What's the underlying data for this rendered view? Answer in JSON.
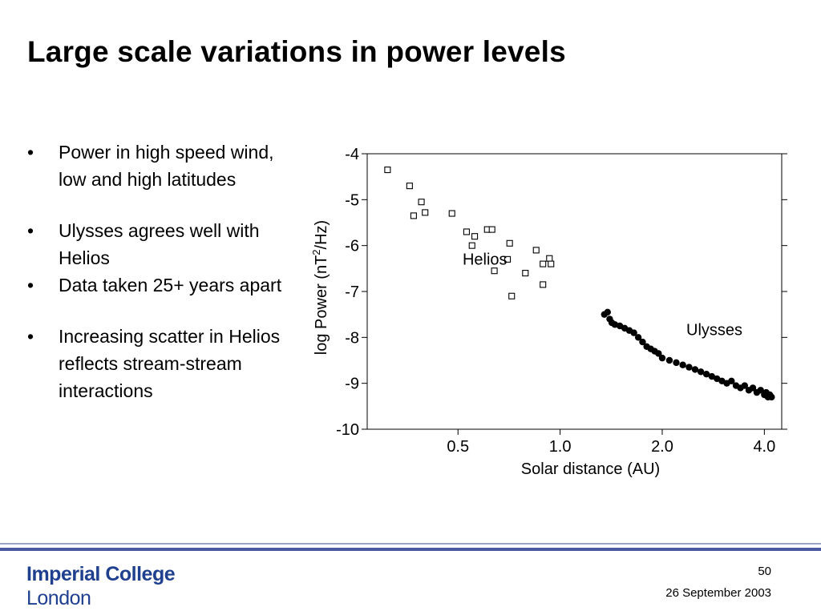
{
  "slide": {
    "title": "Large scale variations in power levels",
    "bullets": [
      {
        "marker": "•",
        "text": "Power in high speed wind, low and high latitudes",
        "gap_after": 30
      },
      {
        "marker": "•",
        "text": "Ulysses agrees well with Helios",
        "gap_after": 0
      },
      {
        "marker": "•",
        "text": "Data taken 25+ years apart",
        "gap_after": 30
      },
      {
        "marker": "•",
        "text": "Increasing scatter in Helios reflects stream-stream interactions",
        "gap_after": 0
      }
    ],
    "page_number": "50",
    "date": "26 September 2003"
  },
  "footer": {
    "logo": {
      "line1": "Imperial College",
      "line2": "London"
    },
    "colors": {
      "logo": "#1f3f8f",
      "rule_thin": "#9aa6c8",
      "rule_thick": "#4a5aa0"
    }
  },
  "chart_data": {
    "type": "scatter",
    "xscale": "log",
    "xlim": [
      0.27,
      4.5
    ],
    "ylim": [
      -10,
      -4
    ],
    "xticks": [
      0.5,
      1.0,
      2.0,
      4.0
    ],
    "xtick_labels": [
      "0.5",
      "1.0",
      "2.0",
      "4.0"
    ],
    "yticks": [
      -4,
      -5,
      -6,
      -7,
      -8,
      -9,
      -10
    ],
    "ytick_labels": [
      "-4",
      "-5",
      "-6",
      "-7",
      "-8",
      "-9",
      "-10"
    ],
    "xlabel": "Solar distance (AU)",
    "ylabel": {
      "before": "log Power (nT",
      "sup": "2",
      "after": "/Hz)"
    },
    "grid": false,
    "series": [
      {
        "name": "Helios",
        "marker": "open-square",
        "points": [
          [
            0.31,
            -4.35
          ],
          [
            0.36,
            -4.7
          ],
          [
            0.37,
            -5.35
          ],
          [
            0.39,
            -5.05
          ],
          [
            0.4,
            -5.28
          ],
          [
            0.48,
            -5.3
          ],
          [
            0.53,
            -5.7
          ],
          [
            0.56,
            -5.8
          ],
          [
            0.55,
            -6.0
          ],
          [
            0.61,
            -5.65
          ],
          [
            0.63,
            -5.65
          ],
          [
            0.64,
            -6.55
          ],
          [
            0.71,
            -5.95
          ],
          [
            0.7,
            -6.3
          ],
          [
            0.72,
            -7.1
          ],
          [
            0.79,
            -6.6
          ],
          [
            0.85,
            -6.1
          ],
          [
            0.89,
            -6.4
          ],
          [
            0.89,
            -6.85
          ],
          [
            0.93,
            -6.28
          ],
          [
            0.94,
            -6.4
          ]
        ]
      },
      {
        "name": "Ulysses",
        "marker": "filled-circle",
        "points": [
          [
            1.35,
            -7.5
          ],
          [
            1.38,
            -7.45
          ],
          [
            1.4,
            -7.6
          ],
          [
            1.42,
            -7.68
          ],
          [
            1.45,
            -7.72
          ],
          [
            1.5,
            -7.75
          ],
          [
            1.55,
            -7.8
          ],
          [
            1.6,
            -7.85
          ],
          [
            1.65,
            -7.9
          ],
          [
            1.7,
            -8.0
          ],
          [
            1.75,
            -8.1
          ],
          [
            1.8,
            -8.2
          ],
          [
            1.85,
            -8.25
          ],
          [
            1.9,
            -8.3
          ],
          [
            1.95,
            -8.35
          ],
          [
            2.0,
            -8.45
          ],
          [
            2.1,
            -8.5
          ],
          [
            2.2,
            -8.55
          ],
          [
            2.3,
            -8.6
          ],
          [
            2.4,
            -8.65
          ],
          [
            2.5,
            -8.7
          ],
          [
            2.6,
            -8.75
          ],
          [
            2.7,
            -8.8
          ],
          [
            2.8,
            -8.85
          ],
          [
            2.9,
            -8.9
          ],
          [
            3.0,
            -8.95
          ],
          [
            3.1,
            -9.0
          ],
          [
            3.2,
            -8.95
          ],
          [
            3.3,
            -9.05
          ],
          [
            3.4,
            -9.1
          ],
          [
            3.5,
            -9.05
          ],
          [
            3.6,
            -9.15
          ],
          [
            3.7,
            -9.1
          ],
          [
            3.8,
            -9.2
          ],
          [
            3.9,
            -9.15
          ],
          [
            4.0,
            -9.25
          ],
          [
            4.05,
            -9.2
          ],
          [
            4.1,
            -9.3
          ],
          [
            4.15,
            -9.25
          ],
          [
            4.2,
            -9.3
          ]
        ]
      }
    ],
    "annotations": [
      {
        "text": "Helios",
        "x": 0.6,
        "y": -6.42
      },
      {
        "text": "Ulysses",
        "x": 2.85,
        "y": -7.95
      }
    ]
  }
}
